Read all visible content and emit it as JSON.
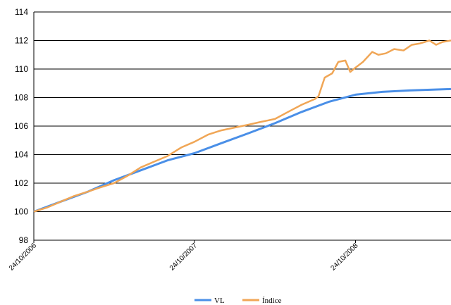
{
  "chart_data": {
    "type": "line",
    "title": "",
    "xlabel": "",
    "ylabel": "",
    "ylim": [
      98,
      114
    ],
    "y_ticks": [
      98,
      100,
      102,
      104,
      106,
      108,
      110,
      112,
      114
    ],
    "y_tick_labels": [
      "98",
      "100",
      "102",
      "104",
      "106",
      "108",
      "110",
      "112",
      "114"
    ],
    "x_tick_labels": [
      "24/10/2006",
      "24/10/2007",
      "24/10/2008"
    ],
    "x_tick_positions": [
      "2006-10-24",
      "2007-10-24",
      "2008-10-24"
    ],
    "x_range": [
      "2006-10-24",
      "2009-05-29"
    ],
    "grid": "horizontal",
    "legend_position": "bottom-center",
    "colors": {
      "VL": "#4a8fe7",
      "Índice": "#f0a656"
    },
    "series": [
      {
        "name": "VL",
        "color": "#4a8fe7",
        "x": [
          "2006-10-24",
          "2006-12-24",
          "2007-02-24",
          "2007-04-24",
          "2007-06-24",
          "2007-08-24",
          "2007-10-24",
          "2007-12-24",
          "2008-02-24",
          "2008-04-24",
          "2008-06-24",
          "2008-08-24",
          "2008-10-24",
          "2008-12-24",
          "2009-02-24",
          "2009-05-29"
        ],
        "values": [
          100.0,
          100.7,
          101.4,
          102.2,
          102.9,
          103.6,
          104.1,
          104.8,
          105.5,
          106.2,
          107.0,
          107.7,
          108.2,
          108.4,
          108.5,
          108.6
        ]
      },
      {
        "name": "Índice",
        "color": "#f0a656",
        "x": [
          "2006-10-24",
          "2006-11-24",
          "2006-12-24",
          "2007-01-24",
          "2007-02-24",
          "2007-03-24",
          "2007-04-24",
          "2007-05-24",
          "2007-06-24",
          "2007-07-24",
          "2007-08-24",
          "2007-09-24",
          "2007-10-24",
          "2007-11-24",
          "2007-12-24",
          "2008-01-24",
          "2008-02-24",
          "2008-03-24",
          "2008-04-24",
          "2008-05-24",
          "2008-06-24",
          "2008-07-24",
          "2008-08-01",
          "2008-08-15",
          "2008-09-01",
          "2008-09-15",
          "2008-10-01",
          "2008-10-12",
          "2008-10-24",
          "2008-11-10",
          "2008-12-01",
          "2008-12-15",
          "2009-01-01",
          "2009-01-20",
          "2009-02-10",
          "2009-03-01",
          "2009-03-20",
          "2009-04-10",
          "2009-04-25",
          "2009-05-10",
          "2009-05-29"
        ],
        "values": [
          100.0,
          100.3,
          100.7,
          101.1,
          101.4,
          101.7,
          102.0,
          102.5,
          103.1,
          103.5,
          103.9,
          104.5,
          104.9,
          105.4,
          105.7,
          105.9,
          106.1,
          106.3,
          106.5,
          107.0,
          107.5,
          107.9,
          108.1,
          109.4,
          109.7,
          110.5,
          110.6,
          109.8,
          110.1,
          110.5,
          111.2,
          111.0,
          111.1,
          111.4,
          111.3,
          111.7,
          111.8,
          112.0,
          111.7,
          111.9,
          112.0
        ]
      }
    ]
  }
}
